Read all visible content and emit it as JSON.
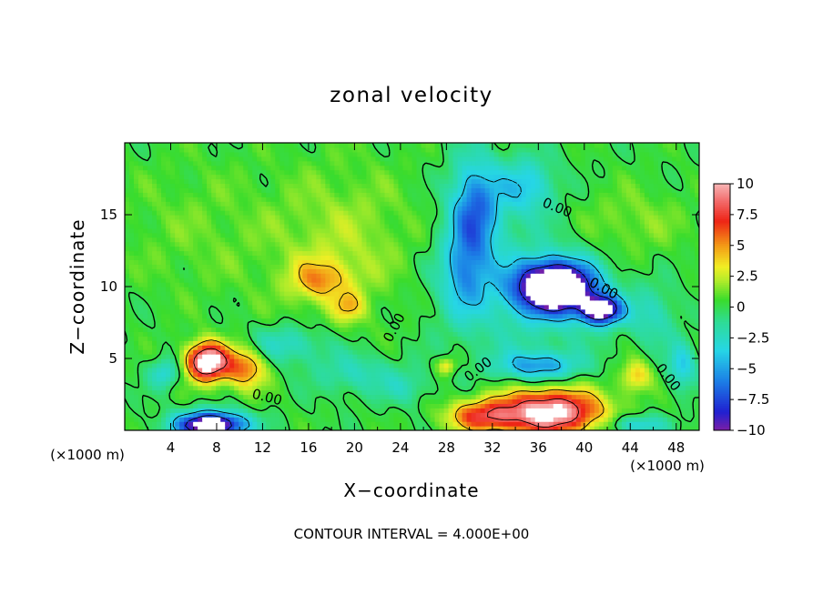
{
  "chart_data": {
    "type": "heatmap",
    "title": "zonal velocity",
    "xlabel": "X−coordinate",
    "ylabel": "Z−coordinate",
    "x_unit_left": "(×1000 m)",
    "x_unit_right": "(×1000 m)",
    "xlim": [
      0,
      50
    ],
    "ylim": [
      0,
      20
    ],
    "x_ticks": [
      4,
      8,
      12,
      16,
      20,
      24,
      28,
      32,
      36,
      40,
      44,
      48
    ],
    "y_ticks": [
      5,
      10,
      15
    ],
    "colorbar": {
      "min": -10,
      "max": 10,
      "ticks": [
        {
          "value": 10,
          "label": "10"
        },
        {
          "value": 7.5,
          "label": "7.5"
        },
        {
          "value": 5,
          "label": "5"
        },
        {
          "value": 2.5,
          "label": "2.5"
        },
        {
          "value": 0,
          "label": "0"
        },
        {
          "value": -2.5,
          "label": "−2.5"
        },
        {
          "value": -5,
          "label": "−5"
        },
        {
          "value": -7.5,
          "label": "−7.5"
        },
        {
          "value": -10,
          "label": "−10"
        }
      ]
    },
    "field_blobs": [
      {
        "x": 19,
        "y": 13,
        "sx": 6.5,
        "sy": 5.5,
        "v": 1.8
      },
      {
        "x": 6,
        "y": 14,
        "sx": 7,
        "sy": 5,
        "v": 0.9
      },
      {
        "x": 44,
        "y": 14.5,
        "sx": 5,
        "sy": 2.5,
        "v": 1.4
      },
      {
        "x": 17,
        "y": 10.5,
        "sx": 2.6,
        "sy": 1.4,
        "v": 3.8
      },
      {
        "x": 19.5,
        "y": 8.6,
        "sx": 1.4,
        "sy": 1.0,
        "v": 3.0
      },
      {
        "x": 30.5,
        "y": 15.5,
        "sx": 2.2,
        "sy": 3.5,
        "v": -6.5
      },
      {
        "x": 29.5,
        "y": 11,
        "sx": 2,
        "sy": 3,
        "v": -4.0
      },
      {
        "x": 35,
        "y": 17,
        "sx": 2.5,
        "sy": 2,
        "v": -4.0
      },
      {
        "x": 37.5,
        "y": 10,
        "sx": 3.3,
        "sy": 1.7,
        "v": -15
      },
      {
        "x": 41.5,
        "y": 8.4,
        "sx": 1.8,
        "sy": 1.0,
        "v": -11
      },
      {
        "x": 34.5,
        "y": 9.5,
        "sx": 7,
        "sy": 4.5,
        "v": -2.5
      },
      {
        "x": 7.2,
        "y": 4.8,
        "sx": 1.8,
        "sy": 1.3,
        "v": 12
      },
      {
        "x": 10.5,
        "y": 4.4,
        "sx": 1.8,
        "sy": 1.5,
        "v": 5.5
      },
      {
        "x": 3.5,
        "y": 4.0,
        "sx": 1.3,
        "sy": 1.0,
        "v": -3.5
      },
      {
        "x": 14,
        "y": 6.0,
        "sx": 3.5,
        "sy": 1.3,
        "v": -3.0
      },
      {
        "x": 20,
        "y": 4.0,
        "sx": 3.5,
        "sy": 1.5,
        "v": -2.5
      },
      {
        "x": 24.5,
        "y": 3.0,
        "sx": 2,
        "sy": 1.2,
        "v": -2.0
      },
      {
        "x": 7.5,
        "y": 0.4,
        "sx": 3.0,
        "sy": 0.9,
        "v": -13
      },
      {
        "x": 37,
        "y": 1.3,
        "sx": 4.5,
        "sy": 1.6,
        "v": 11
      },
      {
        "x": 31,
        "y": 1.0,
        "sx": 3.0,
        "sy": 1.1,
        "v": 6
      },
      {
        "x": 36,
        "y": 4.5,
        "sx": 3.5,
        "sy": 1.0,
        "v": -5
      },
      {
        "x": 44.5,
        "y": 3.8,
        "sx": 1.3,
        "sy": 1.1,
        "v": 4
      },
      {
        "x": 44.5,
        "y": 0.4,
        "sx": 2.5,
        "sy": 0.7,
        "v": -4
      },
      {
        "x": 48.5,
        "y": 4.5,
        "sx": 1.2,
        "sy": 1.6,
        "v": -4
      },
      {
        "x": 46,
        "y": 8,
        "sx": 2,
        "sy": 2,
        "v": -2.5
      },
      {
        "x": 28,
        "y": 4.5,
        "sx": 0.8,
        "sy": 0.6,
        "v": 3.5
      }
    ],
    "field_base": 0.2,
    "contour_labels": [
      {
        "text": "0.00",
        "x": 12.3,
        "y": 2.0,
        "angle": 14
      },
      {
        "text": "0.00",
        "x": 23.8,
        "y": 7.0,
        "angle": -62
      },
      {
        "text": "0.00",
        "x": 31.0,
        "y": 4.0,
        "angle": -38
      },
      {
        "text": "0.00",
        "x": 37.5,
        "y": 15.2,
        "angle": 22
      },
      {
        "text": "0.00",
        "x": 41.5,
        "y": 9.6,
        "angle": 28
      },
      {
        "text": "0.00",
        "x": 47.0,
        "y": 3.5,
        "angle": 52
      }
    ],
    "footer": "CONTOUR INTERVAL = 4.000E+00"
  }
}
